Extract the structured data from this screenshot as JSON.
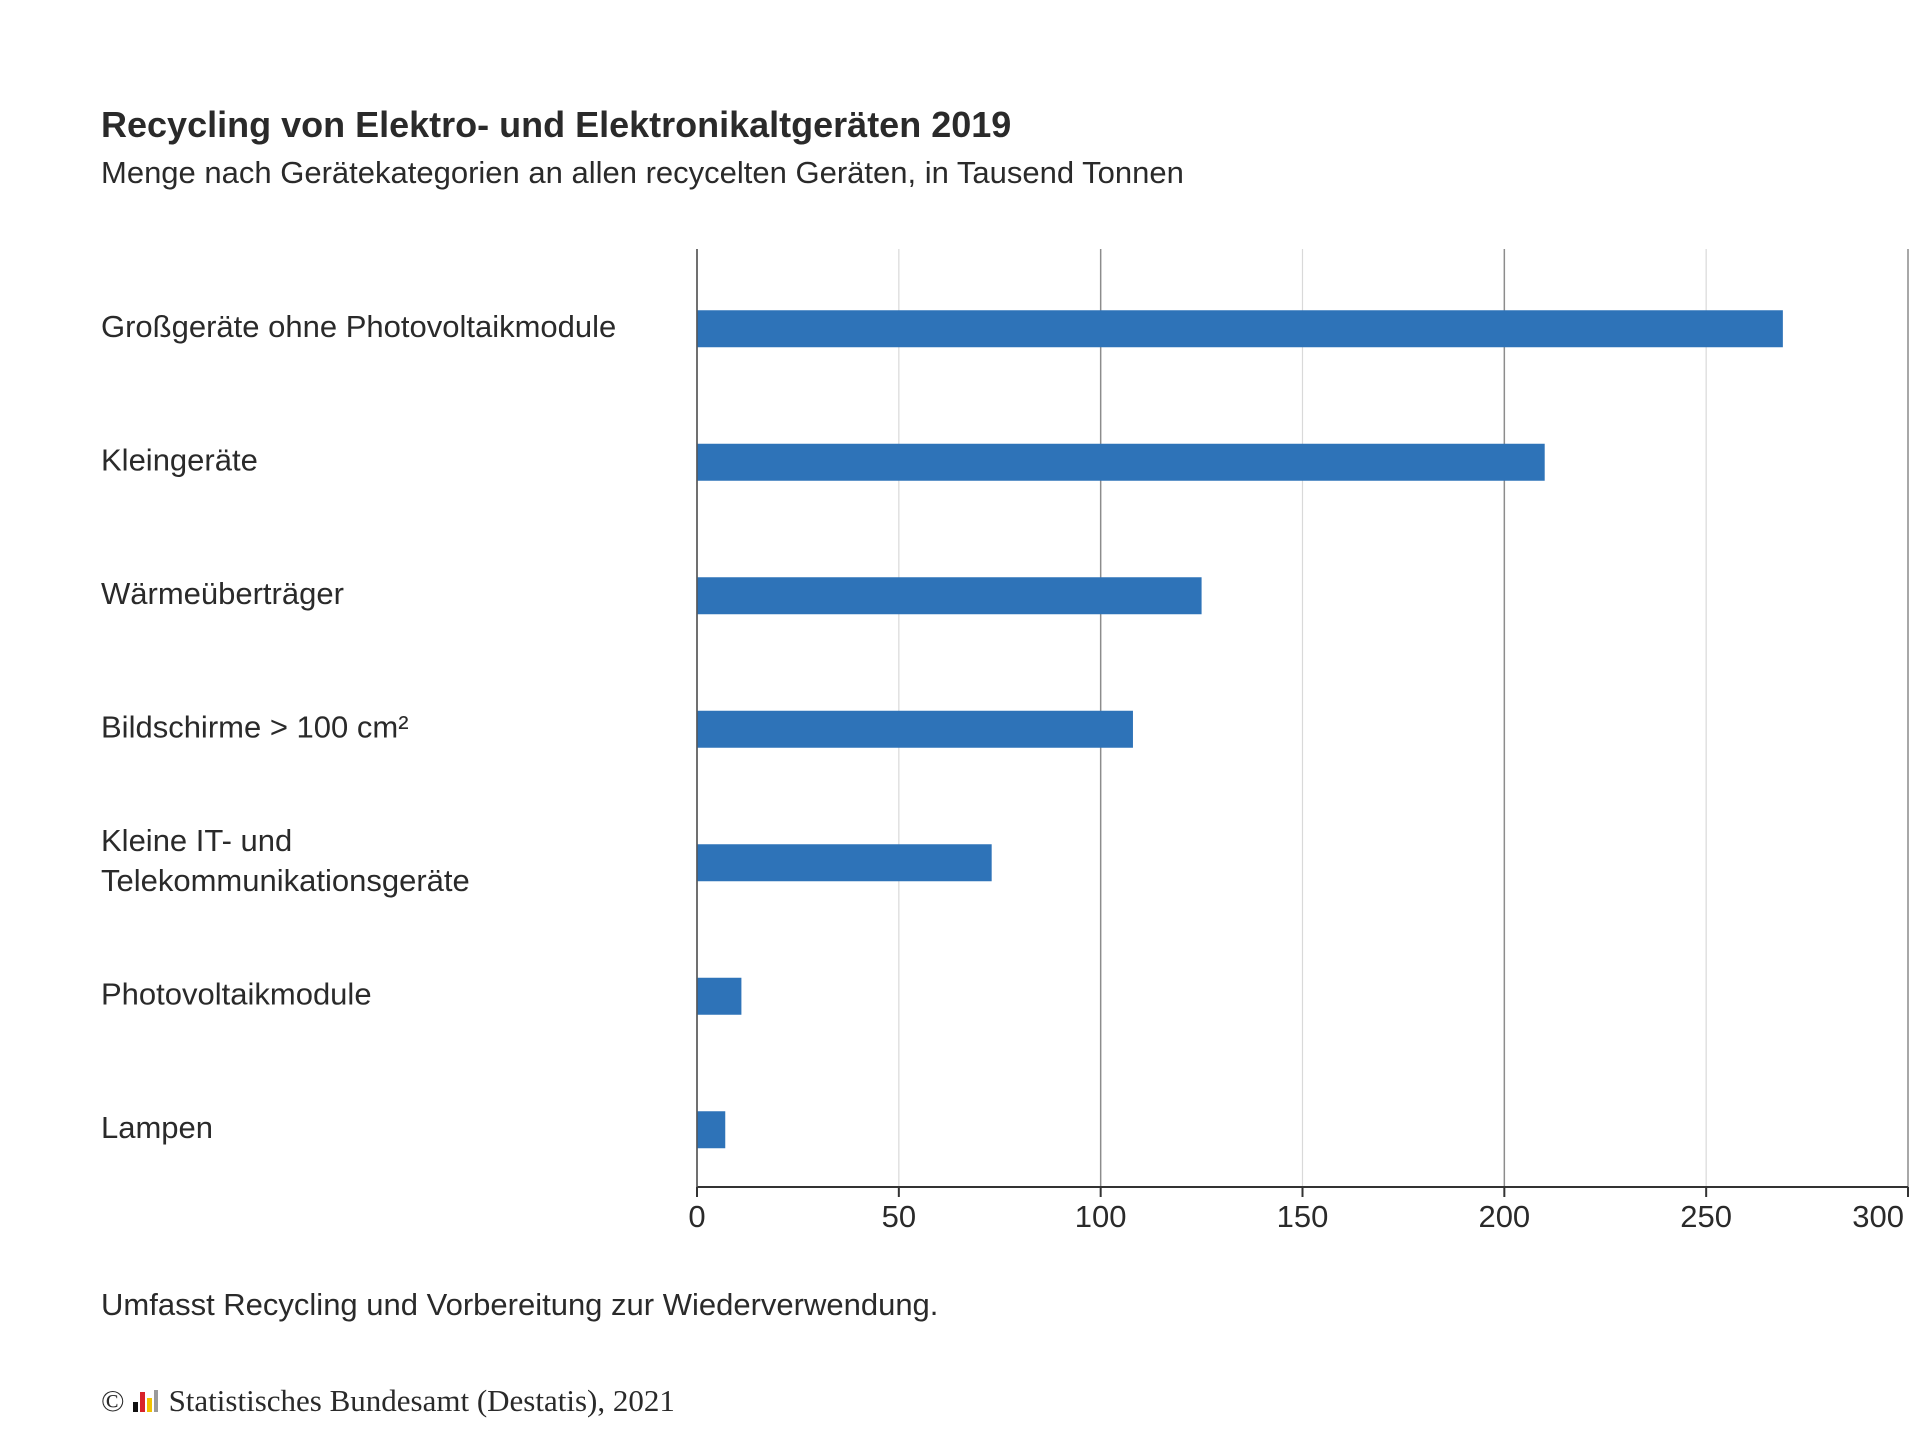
{
  "header": {
    "title": "Recycling von Elektro- und Elektronikaltgeräten 2019",
    "subtitle": "Menge nach Gerätekategorien an allen recycelten Geräten, in Tausend Tonnen"
  },
  "chart_data": {
    "type": "bar",
    "orientation": "horizontal",
    "title": "Recycling von Elektro- und Elektronikaltgeräten 2019",
    "subtitle": "Menge nach Gerätekategorien an allen recycelten Geräten, in Tausend Tonnen",
    "categories": [
      [
        "Großgeräte ohne Photovoltaikmodule"
      ],
      [
        "Kleingeräte"
      ],
      [
        "Wärmeüberträger"
      ],
      [
        "Bildschirme > 100 cm²"
      ],
      [
        "Kleine IT- und",
        "Telekommunikationsgeräte"
      ],
      [
        "Photovoltaikmodule"
      ],
      [
        "Lampen"
      ]
    ],
    "values": [
      269,
      210,
      125,
      108,
      73,
      11,
      7
    ],
    "xlim": [
      0,
      300
    ],
    "xticks": [
      0,
      50,
      100,
      150,
      200,
      250,
      300
    ],
    "grid": true,
    "xlabel": "",
    "ylabel": "",
    "bar_color": "#2e73b8",
    "grid_color_major": "#8c8c8c",
    "grid_color_minor": "#d9d9d9"
  },
  "footer": {
    "note": "Umfasst Recycling und Vorbereitung zur Wiederverwendung.",
    "copyright_symbol": "©",
    "source": "Statistisches Bundesamt (Destatis), 2021",
    "logo_icon": "destatis-logo-icon"
  }
}
